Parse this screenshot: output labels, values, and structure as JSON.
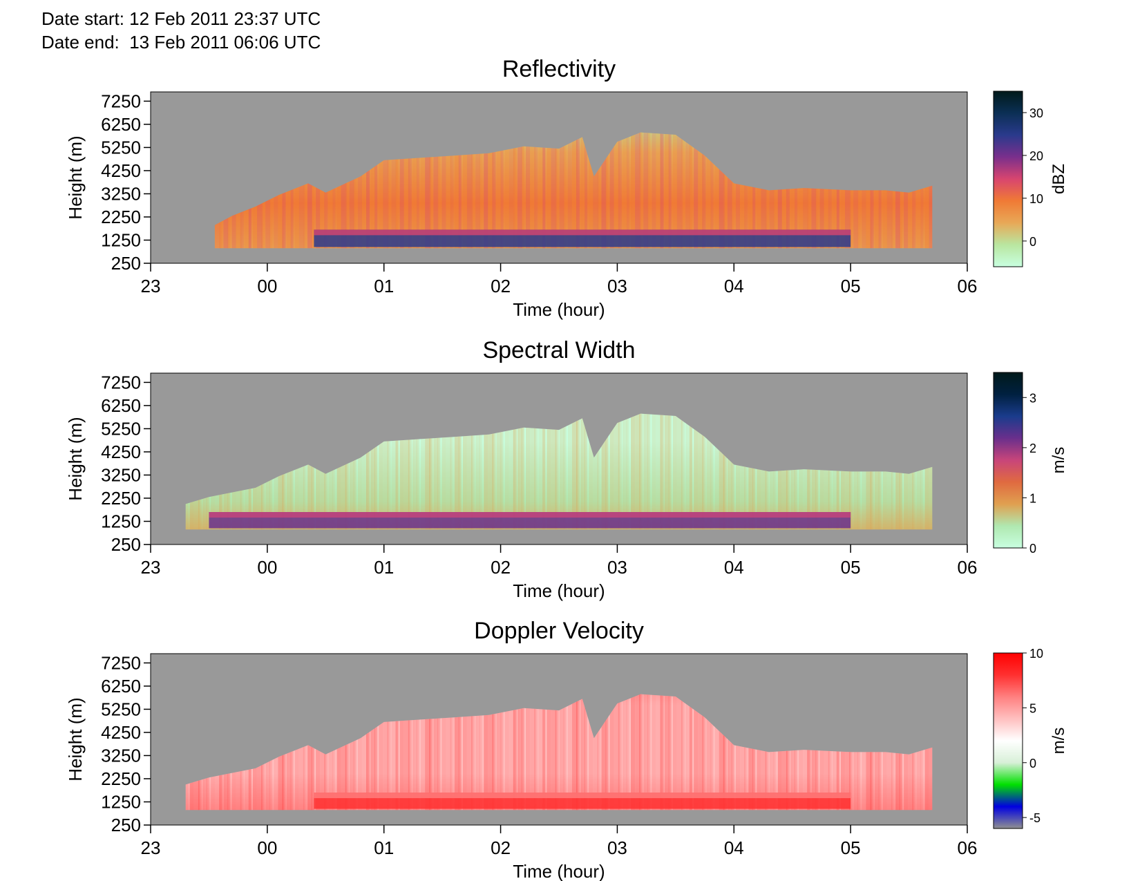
{
  "header": {
    "date_start_label": "Date start:",
    "date_start_value": "12 Feb 2011 23:37 UTC",
    "date_end_label": "Date end:",
    "date_end_value": "13 Feb 2011 06:06 UTC"
  },
  "colors": {
    "background_gray": "#999999",
    "refl_scale": [
      "#c8ffe0",
      "#b9e6a0",
      "#e8a857",
      "#f07a35",
      "#d8456f",
      "#7a2f8c",
      "#2a3a8c",
      "#0b2f55",
      "#001a1a"
    ],
    "width_scale": [
      "#c8ffe0",
      "#b0e8b0",
      "#e0a050",
      "#e06a40",
      "#c8457a",
      "#6a2f8c",
      "#1a3c8c",
      "#002040",
      "#001a1a"
    ],
    "velocity_scale": [
      "#909090",
      "#0000e0",
      "#00e000",
      "#d8f0d8",
      "#ffffff",
      "#ffc0c0",
      "#ff8080",
      "#ff3030",
      "#ff0000"
    ]
  },
  "chart_data": [
    {
      "type": "heatmap",
      "title": "Reflectivity",
      "xlabel": "Time (hour)",
      "ylabel": "Height (m)",
      "x_ticks": [
        "23",
        "00",
        "01",
        "02",
        "03",
        "04",
        "05",
        "06"
      ],
      "y_ticks": [
        "250",
        "1250",
        "2250",
        "3250",
        "4250",
        "5250",
        "6250",
        "7250"
      ],
      "xlim_hours": [
        23,
        30
      ],
      "ylim": [
        250,
        7650
      ],
      "colorbar": {
        "label": "dBZ",
        "ticks": [
          "30",
          "20",
          "10",
          "0"
        ],
        "tick_values": [
          30,
          20,
          10,
          0
        ],
        "range": [
          -6,
          35
        ]
      },
      "echo_top_profile": {
        "time": [
          23.55,
          23.7,
          23.9,
          24.1,
          24.35,
          24.5,
          24.8,
          25.0,
          25.3,
          25.6,
          25.9,
          26.2,
          26.5,
          26.7,
          26.8,
          27.0,
          27.2,
          27.5,
          27.75,
          28.0,
          28.3,
          28.6,
          29.0,
          29.3,
          29.5,
          29.7
        ],
        "height": [
          1900,
          2300,
          2700,
          3200,
          3700,
          3300,
          4000,
          4700,
          4800,
          4900,
          5000,
          5300,
          5200,
          5700,
          4000,
          5500,
          5900,
          5800,
          4900,
          3700,
          3400,
          3500,
          3400,
          3400,
          3300,
          3600
        ]
      },
      "core_layer": {
        "base_m": 950,
        "top_m": 1700,
        "time_start": 24.4,
        "time_end": 29.0
      }
    },
    {
      "type": "heatmap",
      "title": "Spectral Width",
      "xlabel": "Time (hour)",
      "ylabel": "Height (m)",
      "x_ticks": [
        "23",
        "00",
        "01",
        "02",
        "03",
        "04",
        "05",
        "06"
      ],
      "y_ticks": [
        "250",
        "1250",
        "2250",
        "3250",
        "4250",
        "5250",
        "6250",
        "7250"
      ],
      "xlim_hours": [
        23,
        30
      ],
      "ylim": [
        250,
        7650
      ],
      "colorbar": {
        "label": "m/s",
        "ticks": [
          "3",
          "2",
          "1",
          "0"
        ],
        "tick_values": [
          3,
          2,
          1,
          0
        ],
        "range": [
          0,
          3.5
        ]
      },
      "echo_top_profile": {
        "time": [
          23.3,
          23.5,
          23.9,
          24.1,
          24.35,
          24.5,
          24.8,
          25.0,
          25.3,
          25.6,
          25.9,
          26.2,
          26.5,
          26.7,
          26.8,
          27.0,
          27.2,
          27.5,
          27.75,
          28.0,
          28.3,
          28.6,
          29.0,
          29.3,
          29.5,
          29.7
        ],
        "height": [
          2000,
          2300,
          2700,
          3200,
          3700,
          3300,
          4000,
          4700,
          4800,
          4900,
          5000,
          5300,
          5200,
          5700,
          4000,
          5500,
          5900,
          5800,
          4900,
          3700,
          3400,
          3500,
          3400,
          3400,
          3300,
          3600
        ]
      },
      "core_layer": {
        "base_m": 950,
        "top_m": 1650,
        "time_start": 23.5,
        "time_end": 29.0
      }
    },
    {
      "type": "heatmap",
      "title": "Doppler Velocity",
      "xlabel": "Time (hour)",
      "ylabel": "Height (m)",
      "x_ticks": [
        "23",
        "00",
        "01",
        "02",
        "03",
        "04",
        "05",
        "06"
      ],
      "y_ticks": [
        "250",
        "1250",
        "2250",
        "3250",
        "4250",
        "5250",
        "6250",
        "7250"
      ],
      "xlim_hours": [
        23,
        30
      ],
      "ylim": [
        250,
        7650
      ],
      "colorbar": {
        "label": "m/s",
        "ticks": [
          "10",
          "5",
          "0",
          "-5"
        ],
        "tick_values": [
          10,
          5,
          0,
          -5
        ],
        "range": [
          -6,
          10
        ]
      },
      "echo_top_profile": {
        "time": [
          23.3,
          23.5,
          23.9,
          24.1,
          24.35,
          24.5,
          24.8,
          25.0,
          25.3,
          25.6,
          25.9,
          26.2,
          26.5,
          26.7,
          26.8,
          27.0,
          27.2,
          27.5,
          27.75,
          28.0,
          28.3,
          28.6,
          29.0,
          29.3,
          29.5,
          29.7
        ],
        "height": [
          2000,
          2300,
          2700,
          3200,
          3700,
          3300,
          4000,
          4700,
          4800,
          4900,
          5000,
          5300,
          5200,
          5700,
          4000,
          5500,
          5900,
          5800,
          4900,
          3700,
          3400,
          3500,
          3400,
          3400,
          3300,
          3600
        ]
      },
      "core_layer": {
        "base_m": 950,
        "top_m": 1650,
        "time_start": 24.4,
        "time_end": 29.0
      }
    }
  ]
}
